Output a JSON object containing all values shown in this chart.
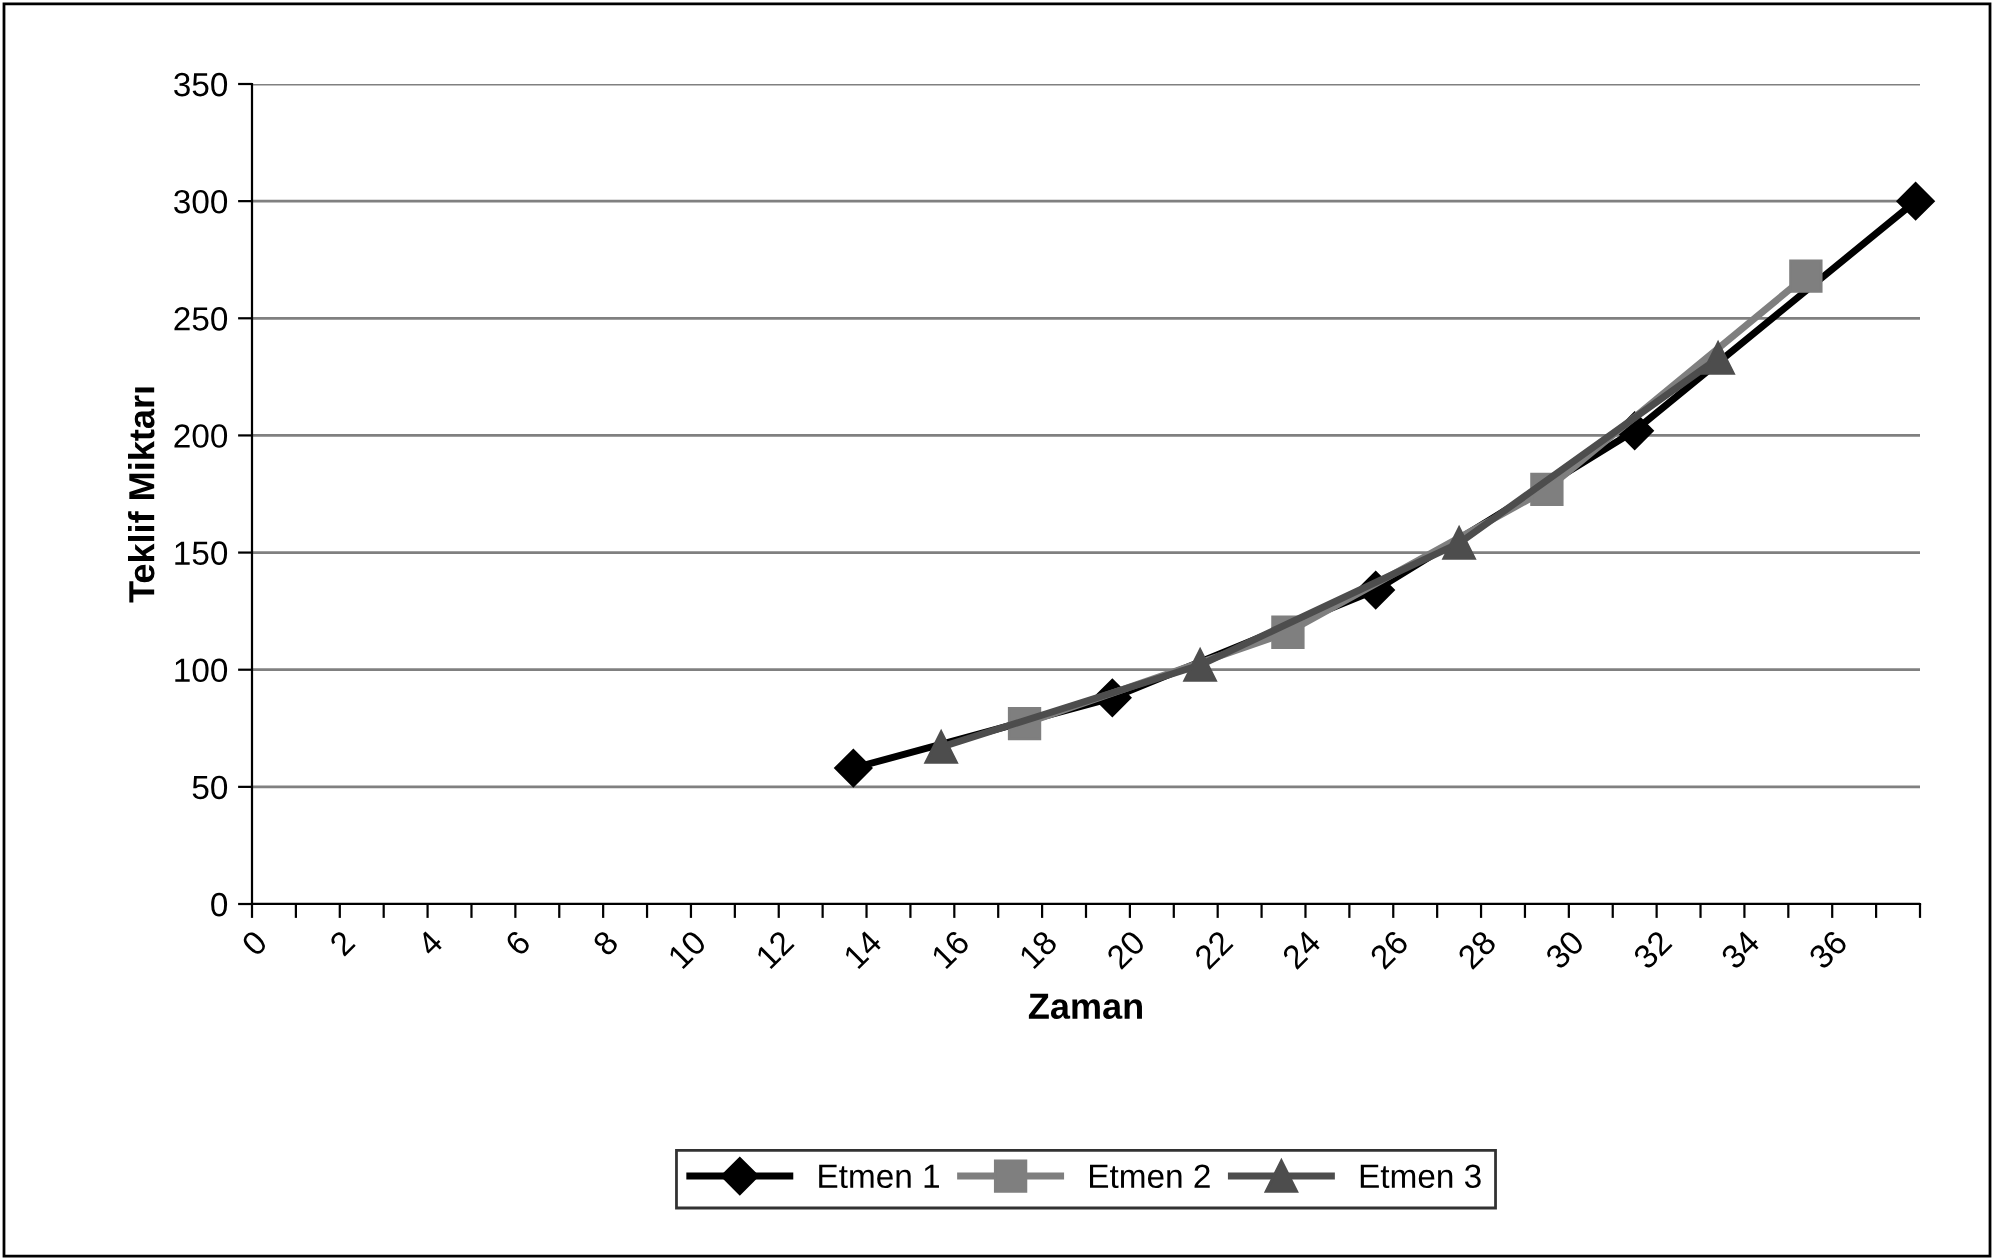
{
  "chart_data": {
    "type": "line",
    "xlabel": "Zaman",
    "ylabel": "Teklif Miktarı",
    "xlim": [
      0,
      38
    ],
    "xticks": [
      0,
      {
        "value": 1,
        "label": null
      },
      2,
      {
        "value": 3,
        "label": null
      },
      4,
      {
        "value": 5,
        "label": null
      },
      6,
      {
        "value": 7,
        "label": null
      },
      8,
      {
        "value": 9,
        "label": null
      },
      10,
      {
        "value": 11,
        "label": null
      },
      12,
      {
        "value": 13,
        "label": null
      },
      14,
      {
        "value": 15,
        "label": null
      },
      16,
      {
        "value": 17,
        "label": null
      },
      18,
      {
        "value": 19,
        "label": null
      },
      20,
      {
        "value": 21,
        "label": null
      },
      22,
      {
        "value": 23,
        "label": null
      },
      24,
      {
        "value": 25,
        "label": null
      },
      26,
      {
        "value": 27,
        "label": null
      },
      28,
      {
        "value": 29,
        "label": null
      },
      30,
      {
        "value": 31,
        "label": null
      },
      32,
      {
        "value": 33,
        "label": null
      },
      34,
      {
        "value": 35,
        "label": null
      },
      36,
      {
        "value": 37,
        "label": null
      },
      {
        "value": 38,
        "label": null
      }
    ],
    "ylim": [
      0,
      350
    ],
    "yticks": [
      0,
      50,
      100,
      150,
      200,
      250,
      300,
      350
    ],
    "grid": "y",
    "legend": "bottom",
    "series": [
      {
        "name": "Etmen 1",
        "color": "#000000",
        "marker": "diamond",
        "x": [
          13.7,
          19.6,
          25.6,
          31.5,
          37.9
        ],
        "values": [
          58,
          88,
          134,
          202,
          300
        ]
      },
      {
        "name": "Etmen 2",
        "color": "#7f7f7f",
        "marker": "square",
        "x": [
          17.6,
          23.6,
          29.5,
          35.4
        ],
        "values": [
          77,
          116,
          177,
          268
        ]
      },
      {
        "name": "Etmen 3",
        "color": "#4d4d4d",
        "marker": "triangle",
        "x": [
          15.7,
          21.6,
          27.5,
          33.4
        ],
        "values": [
          67,
          102,
          154,
          233
        ]
      }
    ]
  }
}
